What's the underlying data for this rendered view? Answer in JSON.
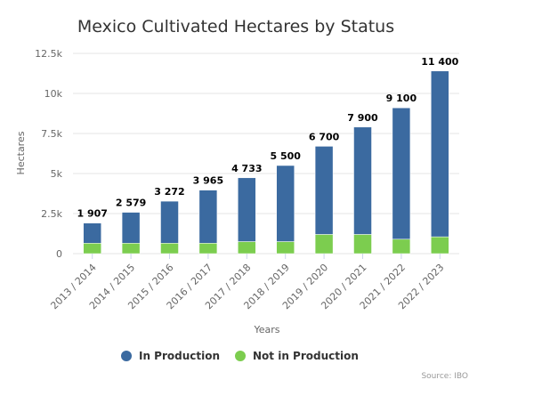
{
  "chart_data": {
    "type": "bar",
    "stacked": true,
    "title": "Mexico Cultivated Hectares by Status",
    "xlabel": "Years",
    "ylabel": "Hectares",
    "ylim": [
      0,
      12500
    ],
    "y_ticks": [
      {
        "value": 0,
        "label": "0"
      },
      {
        "value": 2500,
        "label": "2.5k"
      },
      {
        "value": 5000,
        "label": "5k"
      },
      {
        "value": 7500,
        "label": "7.5k"
      },
      {
        "value": 10000,
        "label": "10k"
      },
      {
        "value": 12500,
        "label": "12.5k"
      }
    ],
    "categories": [
      "2013 / 2014",
      "2014 / 2015",
      "2015 / 2016",
      "2016 / 2017",
      "2017 / 2018",
      "2018 / 2019",
      "2019 / 2020",
      "2020 / 2021",
      "2021 / 2022",
      "2022 / 2023"
    ],
    "series": [
      {
        "name": "Not in Production",
        "color": "#7ccd4f",
        "values": [
          650,
          650,
          650,
          650,
          750,
          750,
          1200,
          1200,
          900,
          1050
        ]
      },
      {
        "name": "In Production",
        "color": "#3b6aa0",
        "values": [
          1257,
          1929,
          2622,
          3315,
          3983,
          4750,
          5500,
          6700,
          8200,
          10350
        ]
      }
    ],
    "totals": [
      1907,
      2579,
      3272,
      3965,
      4733,
      5500,
      6700,
      7900,
      9100,
      11400
    ],
    "total_labels": [
      "1 907",
      "2 579",
      "3 272",
      "3 965",
      "4 733",
      "5 500",
      "6 700",
      "7 900",
      "9 100",
      "11 400"
    ],
    "legend": {
      "position": "bottom",
      "order": [
        "In Production",
        "Not in Production"
      ]
    },
    "grid": true,
    "colors": {
      "in_production": "#3b6aa0",
      "not_in_production": "#7ccd4f",
      "grid": "#e6e6e6"
    }
  },
  "source": "Source: IBO"
}
